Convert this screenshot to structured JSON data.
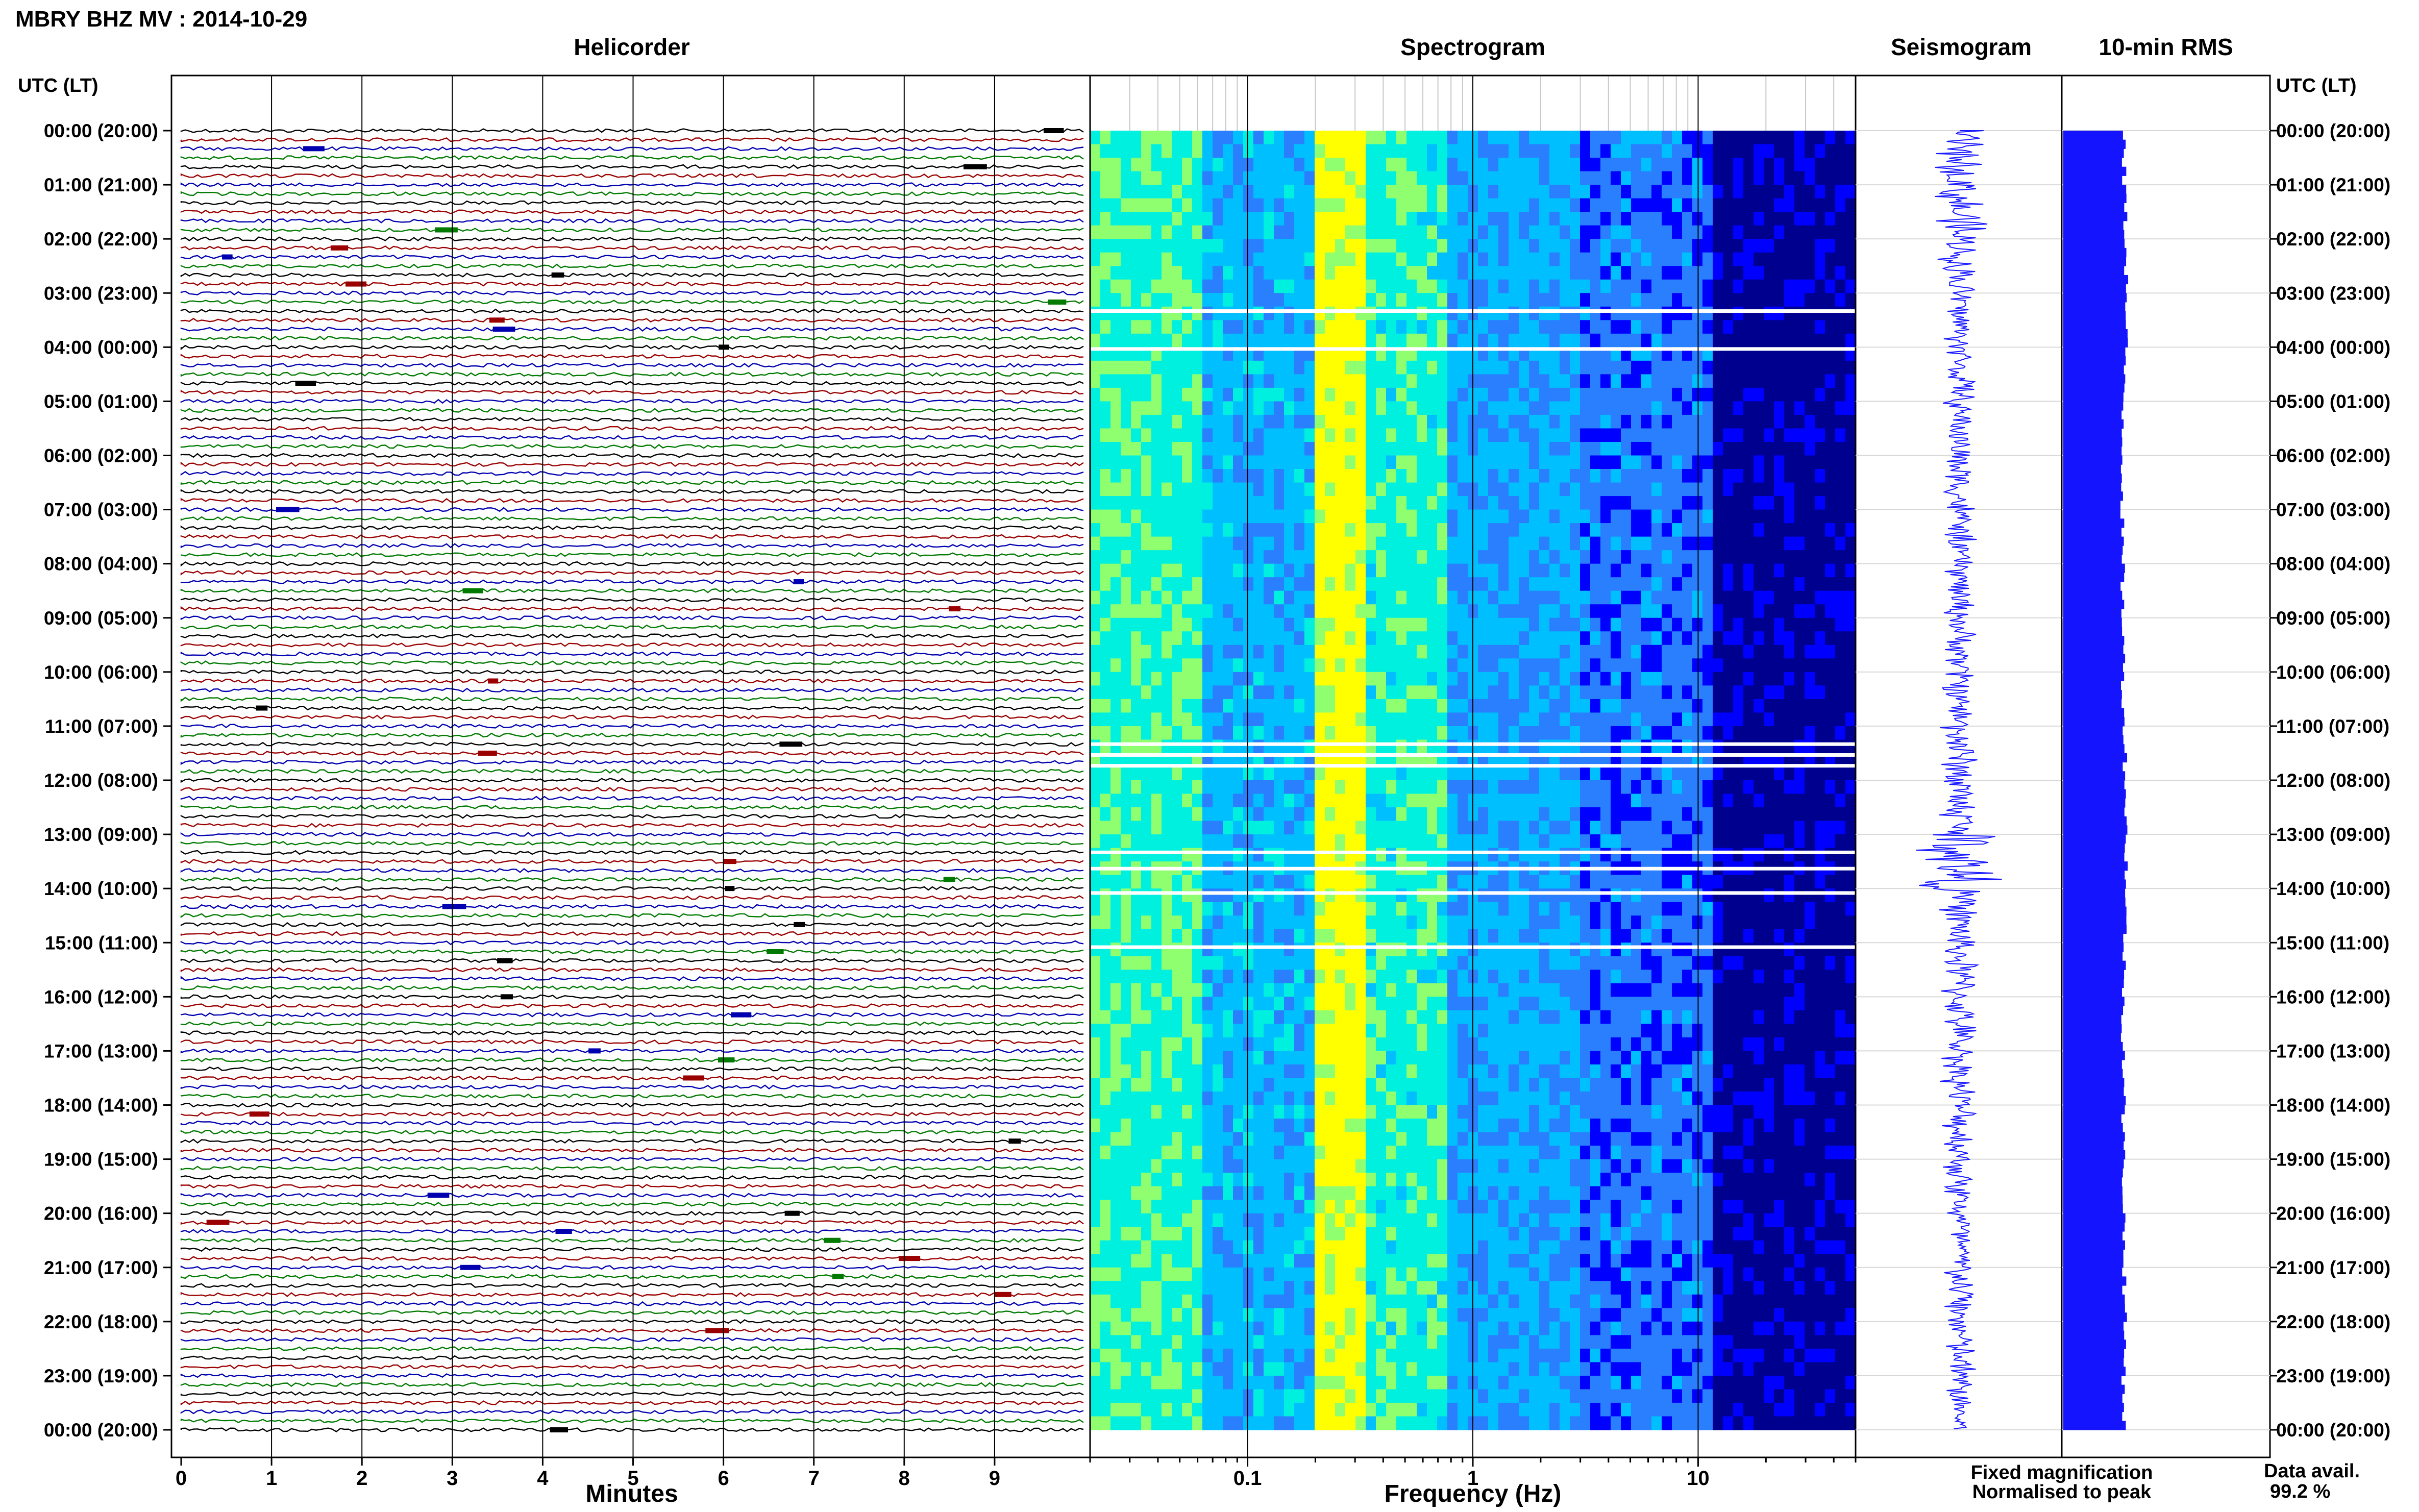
{
  "page": {
    "title": "MBRY BHZ MV : 2014-10-29"
  },
  "panels": {
    "helicorder": "Helicorder",
    "spectrogram": "Spectrogram",
    "seismogram": "Seismogram",
    "rms": "10-min RMS"
  },
  "axes": {
    "left_time_label": "UTC (LT)",
    "right_time_label": "UTC (LT)",
    "helicorder_xlabel": "Minutes",
    "spectrogram_xlabel": "Frequency (Hz)"
  },
  "legend": {
    "fixed": "Fixed magnification",
    "normalised": "Normalised to peak",
    "fixed_color": "#1010e0",
    "normalised_color": "#e01010",
    "data_avail_label": "Data avail.",
    "data_avail_value": "99.2 %"
  },
  "chart_data": {
    "type": "heatmap",
    "time_ticks": [
      "00:00 (20:00)",
      "01:00 (21:00)",
      "02:00 (22:00)",
      "03:00 (23:00)",
      "04:00 (00:00)",
      "05:00 (01:00)",
      "06:00 (02:00)",
      "07:00 (03:00)",
      "08:00 (04:00)",
      "09:00 (05:00)",
      "10:00 (06:00)",
      "11:00 (07:00)",
      "12:00 (08:00)",
      "13:00 (09:00)",
      "14:00 (10:00)",
      "15:00 (11:00)",
      "16:00 (12:00)",
      "17:00 (13:00)",
      "18:00 (14:00)",
      "19:00 (15:00)",
      "20:00 (16:00)",
      "21:00 (17:00)",
      "22:00 (18:00)",
      "23:00 (19:00)",
      "00:00 (20:00)"
    ],
    "helicorder": {
      "xlim": [
        0,
        10
      ],
      "x_ticks": [
        "0",
        "1",
        "2",
        "3",
        "4",
        "5",
        "6",
        "7",
        "8",
        "9"
      ],
      "trace_colors": [
        "#000000",
        "#9a0000",
        "#0000b0",
        "#007a00"
      ],
      "lines_per_hour": 6
    },
    "spectrogram": {
      "x_scale": "log",
      "xlim": [
        0.02,
        50
      ],
      "x_ticks": [
        {
          "v": 0.1,
          "label": "0.1"
        },
        {
          "v": 1,
          "label": "1"
        },
        {
          "v": 10,
          "label": "10"
        }
      ],
      "palette": [
        "#00008e",
        "#0000ff",
        "#2a7fff",
        "#00bfff",
        "#00f0e0",
        "#8fff70",
        "#ffff00"
      ],
      "peak_band_hz": [
        0.2,
        0.35
      ],
      "gap_hours": [
        3.3,
        4.0,
        11.3,
        11.5,
        11.7,
        13.3,
        13.6,
        14.05,
        15.05
      ]
    },
    "rms": {
      "interval_min": 10,
      "hourly_relative": [
        0.95,
        0.97,
        0.99,
        0.98,
        0.96,
        0.94,
        0.93,
        0.92,
        0.93,
        0.94,
        0.94,
        0.97,
        0.98,
        0.99,
        0.97,
        0.95,
        0.94,
        0.95,
        0.94,
        0.95,
        0.95,
        0.96,
        0.96,
        0.95
      ]
    },
    "seismogram": {
      "relative_amplitude_hourly": [
        0.3,
        0.35,
        0.25,
        0.2,
        0.2,
        0.2,
        0.22,
        0.2,
        0.2,
        0.2,
        0.22,
        0.25,
        0.28,
        0.6,
        0.25,
        0.25,
        0.22,
        0.22,
        0.22,
        0.22,
        0.2,
        0.22,
        0.22,
        0.2
      ]
    }
  }
}
